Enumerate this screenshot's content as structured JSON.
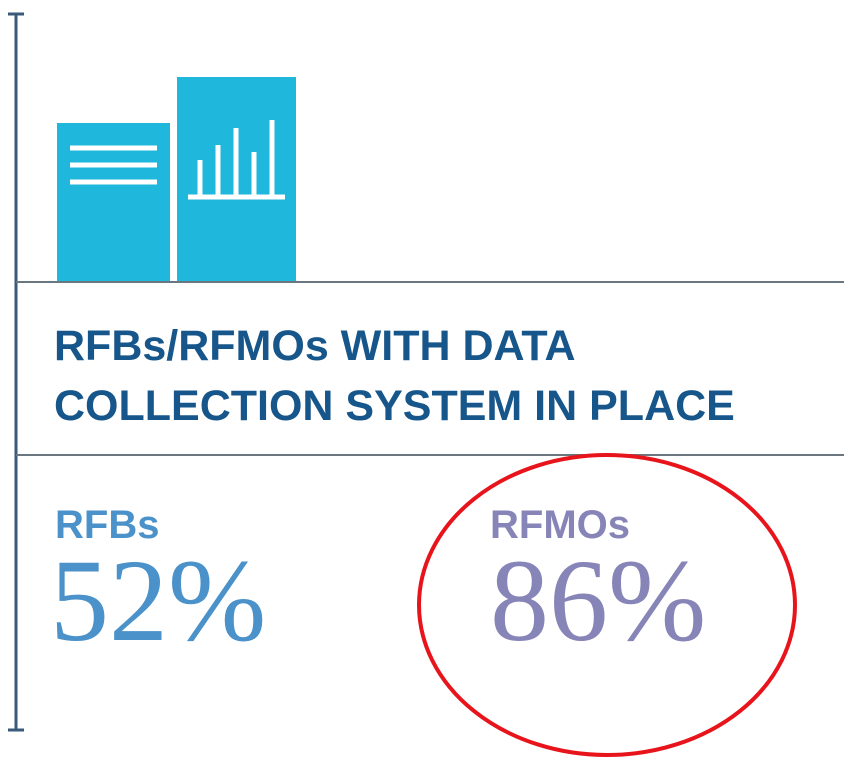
{
  "title": [
    "RFBs/RFMOs WITH DATA",
    "COLLECTION SYSTEM IN PLACE"
  ],
  "stats": [
    {
      "label": "RFBs",
      "value": "52%"
    },
    {
      "label": "RFMOs",
      "value": "86%"
    }
  ]
}
